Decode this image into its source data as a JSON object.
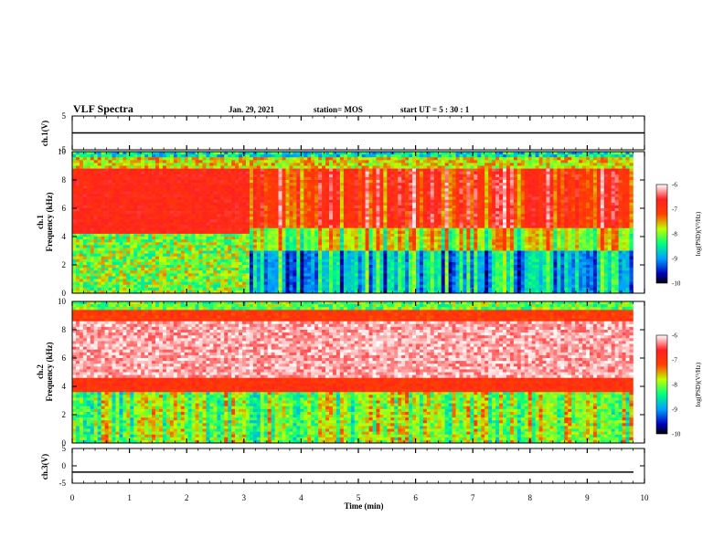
{
  "header": {
    "title": "VLF Spectra",
    "date": "Jan. 29, 2021",
    "station": "station= MOS",
    "start": "start  UT  =  5 : 30 : 1"
  },
  "chart_data": [
    {
      "type": "line",
      "name": "ch1-voltage",
      "ylabel": "ch.1(V)",
      "ylim": [
        -5,
        5
      ],
      "yticks": [
        "5",
        "-5"
      ],
      "x": [
        0,
        10
      ],
      "values": [
        0,
        0
      ]
    },
    {
      "type": "heatmap",
      "name": "ch1-spectrogram",
      "ylabel": "ch.1\nFrequency (kHz)",
      "ylim": [
        0,
        10
      ],
      "yticks": [
        "0",
        "2",
        "4",
        "6",
        "8",
        "10"
      ],
      "xlim": [
        0,
        9.8
      ],
      "colorbar": {
        "label": "log(PSD)(V²/Hz)",
        "range": [
          -10,
          -6
        ],
        "ticks": [
          "-6",
          "-7",
          "-8",
          "-9",
          "-10"
        ]
      }
    },
    {
      "type": "heatmap",
      "name": "ch2-spectrogram",
      "ylabel": "ch.2\nFrequency (kHz)",
      "ylim": [
        0,
        10
      ],
      "yticks": [
        "0",
        "2",
        "4",
        "6",
        "8",
        "10"
      ],
      "xlim": [
        0,
        9.8
      ],
      "colorbar": {
        "label": "log(PSD)(V²/Hz)",
        "range": [
          -10,
          -6
        ],
        "ticks": [
          "-6",
          "-7",
          "-8",
          "-9",
          "-10"
        ]
      }
    },
    {
      "type": "line",
      "name": "ch3-voltage",
      "ylabel": "ch.3(V)",
      "ylim": [
        -5,
        5
      ],
      "yticks": [
        "5",
        "0",
        "-5"
      ],
      "x": [
        0,
        10
      ],
      "values": [
        -1.8,
        -1.8
      ]
    }
  ],
  "xaxis": {
    "label": "Time  (min)",
    "ticks": [
      "0",
      "1",
      "2",
      "3",
      "4",
      "5",
      "6",
      "7",
      "8",
      "9",
      "10"
    ],
    "range": [
      0,
      10
    ]
  },
  "colors": {
    "spectrum": [
      "#000000",
      "#000080",
      "#0000ff",
      "#00ccff",
      "#00ff66",
      "#ffff00",
      "#ff0000",
      "#ffffff"
    ]
  }
}
